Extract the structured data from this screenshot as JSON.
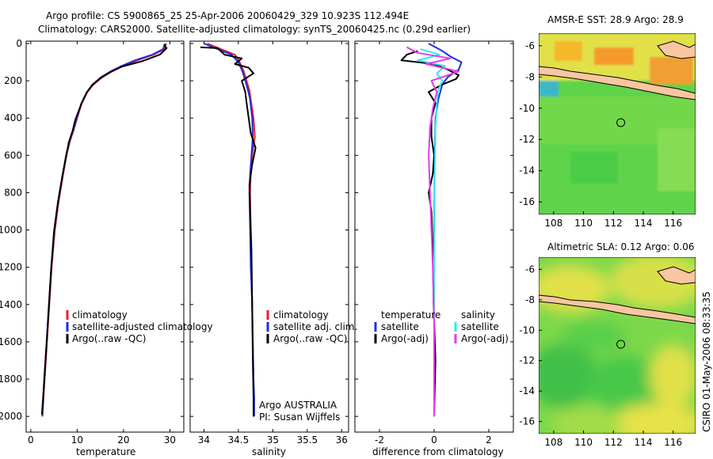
{
  "header": {
    "line1": "Argo profile: CS 5900865_25 25-Apr-2006 20060429_329 10.923S 112.494E",
    "line2": "Climatology: CARS2000. Satellite-adjusted climatology: synTS_20060425.nc (0.29d earlier)"
  },
  "side_label": "CSIRO 01-May-2006 08:33:35",
  "colors": {
    "climatology": "#e8202a",
    "satellite": "#1a2fe0",
    "argo": "#000000",
    "sat_diff": "#34e6ee",
    "argo_diff": "#e63be8",
    "land": "#f8c6a0",
    "sea_green": "#5fd44a",
    "sea_yellow": "#e2e04a",
    "sst_orange": "#f59a2a"
  },
  "chart_data": [
    {
      "type": "line",
      "xlabel": "temperature",
      "xlim": [
        -1,
        33
      ],
      "ylim": [
        0,
        2080
      ],
      "xticks": [
        0,
        10,
        20,
        30
      ],
      "yticks": [
        0,
        200,
        400,
        600,
        800,
        1000,
        1200,
        1400,
        1600,
        1800,
        2000
      ],
      "y_reversed": true,
      "legend": [
        "climatology",
        "satellite-adjusted climatology",
        "Argo(..raw -QC)"
      ],
      "series": [
        {
          "name": "climatology",
          "color": "climatology",
          "x": [
            29.2,
            28.8,
            26.5,
            23,
            20,
            17.5,
            15.5,
            13.5,
            12.2,
            11,
            10,
            9.3,
            8.5,
            7.7,
            7,
            6,
            5.2,
            4.5,
            4,
            3.5,
            3,
            2.5
          ],
          "y": [
            0,
            30,
            60,
            90,
            120,
            150,
            180,
            220,
            260,
            320,
            400,
            460,
            520,
            600,
            700,
            850,
            1000,
            1200,
            1400,
            1600,
            1800,
            2000
          ]
        },
        {
          "name": "satellite-adjusted climatology",
          "color": "satellite",
          "x": [
            29.0,
            28.5,
            26.2,
            22.5,
            19.6,
            17.2,
            15.2,
            13.3,
            12.1,
            10.9,
            9.9,
            9.2,
            8.4,
            7.6,
            6.9,
            5.9,
            5.1,
            4.4,
            3.9,
            3.4,
            2.9,
            2.5
          ],
          "y": [
            0,
            30,
            60,
            90,
            120,
            150,
            180,
            220,
            260,
            320,
            400,
            460,
            520,
            600,
            700,
            850,
            1000,
            1200,
            1400,
            1600,
            1800,
            2000
          ]
        },
        {
          "name": "Argo(..raw -QC)",
          "color": "argo",
          "x": [
            28.7,
            29.3,
            27.8,
            24,
            19.5,
            17,
            15,
            13.2,
            12,
            10.8,
            9.6,
            9.0,
            8.2,
            7.6,
            6.8,
            5.8,
            5.0,
            4.4,
            3.9,
            3.4,
            2.9,
            2.4
          ],
          "y": [
            5,
            25,
            60,
            95,
            125,
            155,
            185,
            225,
            265,
            330,
            410,
            470,
            530,
            610,
            710,
            860,
            1010,
            1210,
            1410,
            1610,
            1810,
            1990
          ]
        }
      ]
    },
    {
      "type": "line",
      "xlabel": "salinity",
      "xlim": [
        33.8,
        36.1
      ],
      "ylim": [
        0,
        2080
      ],
      "xticks": [
        34,
        34.5,
        35,
        35.5,
        36
      ],
      "yticks": [
        0,
        200,
        400,
        600,
        800,
        1000,
        1200,
        1400,
        1600,
        1800,
        2000
      ],
      "y_reversed": true,
      "legend": [
        "climatology",
        "satellite adj. clim.",
        "Argo(..raw -QC)"
      ],
      "annotations": [
        "Argo AUSTRALIA",
        "PI: Susan Wijffels"
      ],
      "series": [
        {
          "name": "climatology",
          "color": "climatology",
          "x": [
            34.05,
            34.25,
            34.45,
            34.52,
            34.58,
            34.62,
            34.66,
            34.68,
            34.72,
            34.74,
            34.7,
            34.68,
            34.67,
            34.68,
            34.69,
            34.7,
            34.71,
            34.72,
            34.72,
            34.72
          ],
          "y": [
            0,
            30,
            60,
            100,
            150,
            200,
            250,
            300,
            400,
            500,
            600,
            700,
            800,
            1000,
            1200,
            1400,
            1600,
            1800,
            1900,
            2000
          ]
        },
        {
          "name": "satellite adj. clim.",
          "color": "satellite",
          "x": [
            34.0,
            34.2,
            34.4,
            34.5,
            34.56,
            34.6,
            34.64,
            34.67,
            34.7,
            34.71,
            34.69,
            34.67,
            34.66,
            34.67,
            34.68,
            34.7,
            34.71,
            34.72,
            34.73,
            34.73
          ],
          "y": [
            0,
            30,
            60,
            100,
            150,
            200,
            250,
            300,
            400,
            500,
            600,
            700,
            800,
            1000,
            1200,
            1400,
            1600,
            1800,
            1900,
            2000
          ]
        },
        {
          "name": "Argo(..raw -QC)",
          "color": "argo",
          "x": [
            33.95,
            34.2,
            34.3,
            34.55,
            34.45,
            34.65,
            34.72,
            34.55,
            34.6,
            34.62,
            34.65,
            34.68,
            34.75,
            34.7,
            34.66,
            34.67,
            34.69,
            34.7,
            34.71,
            34.72,
            34.72
          ],
          "y": [
            20,
            25,
            60,
            80,
            110,
            130,
            160,
            200,
            260,
            320,
            400,
            480,
            560,
            650,
            760,
            900,
            1100,
            1400,
            1700,
            1900,
            2000
          ]
        }
      ]
    },
    {
      "type": "line",
      "xlabel": "difference from climatology",
      "xlim": [
        -2.9,
        2.9
      ],
      "ylim": [
        0,
        2080
      ],
      "xticks": [
        -2,
        0,
        2
      ],
      "yticks": [
        0,
        200,
        400,
        600,
        800,
        1000,
        1200,
        1400,
        1600,
        1800,
        2000
      ],
      "y_reversed": true,
      "legend": [
        "temperature",
        "satellite",
        "Argo(-adj)",
        "salinity",
        "satellite",
        "Argo(-adj)"
      ],
      "series": [
        {
          "name": "satellite",
          "color": "satellite",
          "x": [
            -0.2,
            0.3,
            0.6,
            1.0,
            0.9,
            0.5,
            0.3,
            0.15,
            0.05,
            0.02,
            0.0,
            0.0,
            0.0
          ],
          "y": [
            0,
            40,
            70,
            100,
            140,
            180,
            220,
            300,
            400,
            600,
            1000,
            1500,
            2000
          ]
        },
        {
          "name": "Argo(-adj)",
          "color": "argo",
          "x": [
            -0.6,
            -1.0,
            -1.2,
            0.0,
            0.5,
            0.9,
            0.8,
            0.3,
            -0.2,
            0.05,
            -0.1,
            -0.1,
            0.0,
            -0.05,
            -0.2,
            -0.1,
            -0.05,
            -0.02,
            0.05,
            0.0
          ],
          "y": [
            40,
            60,
            90,
            110,
            140,
            170,
            190,
            220,
            260,
            320,
            400,
            500,
            600,
            700,
            800,
            900,
            1100,
            1400,
            1700,
            1990
          ]
        },
        {
          "name": "satellite",
          "color": "sat_diff",
          "x": [
            -0.5,
            0.2,
            -0.6,
            0.4,
            0.1,
            0.3,
            0.15,
            0.1,
            0.05,
            0.02,
            0.0,
            0.0
          ],
          "y": [
            30,
            60,
            90,
            120,
            160,
            200,
            250,
            320,
            450,
            700,
            1200,
            2000
          ]
        },
        {
          "name": "Argo(-adj)",
          "color": "argo_diff",
          "x": [
            -1.0,
            -0.6,
            0.6,
            -0.3,
            0.9,
            -0.1,
            0.1,
            -0.05,
            -0.15,
            -0.2,
            -0.15,
            -0.1,
            -0.05,
            0.0,
            0.0,
            0.0
          ],
          "y": [
            20,
            50,
            80,
            110,
            150,
            200,
            260,
            350,
            450,
            600,
            800,
            1000,
            1200,
            1500,
            1800,
            2000
          ]
        }
      ]
    },
    {
      "type": "heatmap",
      "title": "AMSR-E SST: 28.9 Argo: 28.9",
      "xlim": [
        107,
        117.5
      ],
      "ylim": [
        -16.8,
        -5.2
      ],
      "xticks": [
        108,
        110,
        112,
        114,
        116
      ],
      "yticks": [
        -6,
        -8,
        -10,
        -12,
        -14,
        -16
      ],
      "marker": {
        "lon": 112.494,
        "lat": -10.923
      }
    },
    {
      "type": "heatmap",
      "title": "Altimetric SLA: 0.12 Argo: 0.06",
      "xlim": [
        107,
        117.5
      ],
      "ylim": [
        -16.8,
        -5.2
      ],
      "xticks": [
        108,
        110,
        112,
        114,
        116
      ],
      "yticks": [
        -6,
        -8,
        -10,
        -12,
        -14,
        -16
      ],
      "marker": {
        "lon": 112.494,
        "lat": -10.923
      }
    }
  ]
}
